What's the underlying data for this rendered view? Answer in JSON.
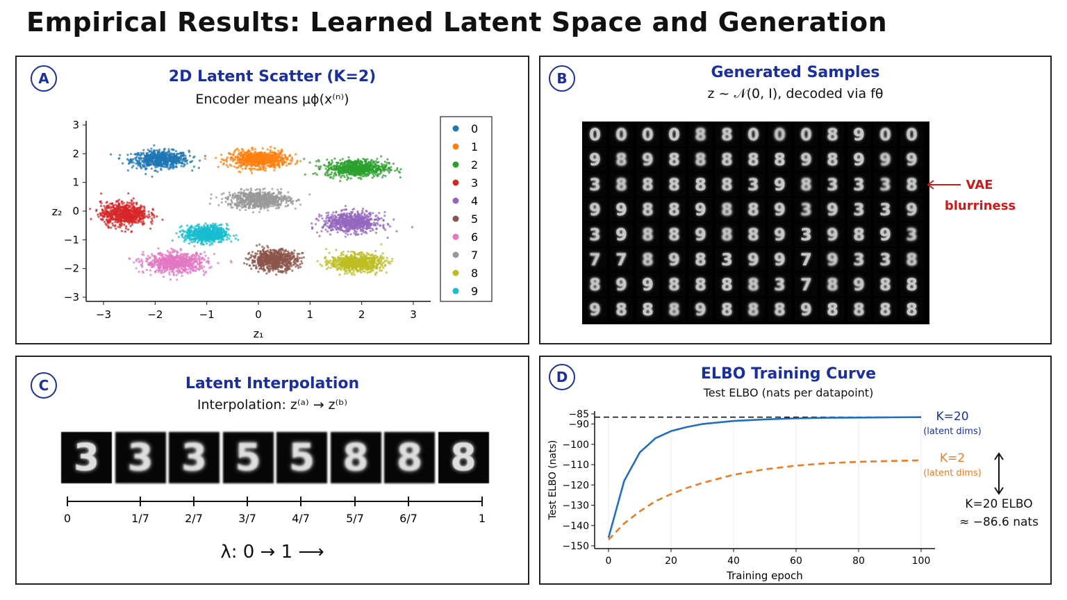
{
  "title": "Empirical Results: Learned Latent Space and Generation",
  "panelA": {
    "badge": "A",
    "title": "2D Latent Scatter (K=2)",
    "subtitle": "Encoder means μϕ(x⁽ⁿ⁾)",
    "xlabel": "z₁",
    "ylabel": "z₂"
  },
  "panelB": {
    "badge": "B",
    "title": "Generated Samples",
    "subtitle": "z ~ 𝒩(0, I), decoded via fθ",
    "annotation_line1": "VAE",
    "annotation_line2": "blurriness",
    "grid": [
      "0000880008900",
      "9898888898999",
      "3888883983338",
      "9988988939339",
      "3988988939893",
      "7789839979338",
      "8998888378988",
      "9888988898888"
    ]
  },
  "panelC": {
    "badge": "C",
    "title": "Latent Interpolation",
    "subtitle": "Interpolation: z⁽ᵃ⁾ → z⁽ᵇ⁾",
    "frames": [
      "3",
      "3",
      "3",
      "5",
      "5",
      "8",
      "8",
      "8"
    ],
    "ticks": [
      "0",
      "1/7",
      "2/7",
      "3/7",
      "4/7",
      "5/7",
      "6/7",
      "1"
    ],
    "lambda_label": "λ: 0 → 1 ⟶"
  },
  "panelD": {
    "badge": "D",
    "title": "ELBO Training Curve",
    "subtitle": "Test ELBO (nats per datapoint)",
    "label_k20": "K=20",
    "label_k20_sub": "(latent dims)",
    "label_k2": "K=2",
    "label_k2_sub": "(latent dims)",
    "note_line1": "K=20 ELBO",
    "note_line2": "≈ −86.6 nats"
  },
  "colors": {
    "accent_blue": "#1a2fa0",
    "red": "#d01818",
    "k20": "#1f6fc0",
    "k2": "#f07a1e"
  },
  "chart_data": [
    {
      "type": "scatter",
      "title": "2D Latent Scatter (K=2)",
      "xlabel": "z₁",
      "ylabel": "z₂",
      "xlim": [
        -3,
        3
      ],
      "ylim": [
        -3,
        3
      ],
      "xticks": [
        "−3",
        "−2",
        "−1",
        "0",
        "1",
        "2",
        "3"
      ],
      "yticks": [
        "3",
        "2",
        "1",
        "0",
        "−1",
        "−2",
        "−3"
      ],
      "legend_position": "right",
      "series": [
        {
          "name": "0",
          "color": "#1f77b4",
          "center": [
            -1.9,
            1.8
          ],
          "spread": [
            0.55,
            0.3
          ]
        },
        {
          "name": "1",
          "color": "#ff7f0e",
          "center": [
            0.0,
            1.8
          ],
          "spread": [
            0.55,
            0.3
          ]
        },
        {
          "name": "2",
          "color": "#2ca02c",
          "center": [
            1.9,
            1.5
          ],
          "spread": [
            0.6,
            0.3
          ]
        },
        {
          "name": "3",
          "color": "#d62728",
          "center": [
            -2.6,
            -0.1
          ],
          "spread": [
            0.45,
            0.4
          ]
        },
        {
          "name": "4",
          "color": "#9467bd",
          "center": [
            1.8,
            -0.4
          ],
          "spread": [
            0.55,
            0.35
          ]
        },
        {
          "name": "5",
          "color": "#8c564b",
          "center": [
            0.3,
            -1.7
          ],
          "spread": [
            0.45,
            0.35
          ]
        },
        {
          "name": "6",
          "color": "#e377c2",
          "center": [
            -1.6,
            -1.8
          ],
          "spread": [
            0.6,
            0.35
          ]
        },
        {
          "name": "7",
          "color": "#999999",
          "center": [
            0.0,
            0.4
          ],
          "spread": [
            0.6,
            0.3
          ]
        },
        {
          "name": "8",
          "color": "#bcbd22",
          "center": [
            1.9,
            -1.8
          ],
          "spread": [
            0.5,
            0.3
          ]
        },
        {
          "name": "9",
          "color": "#17becf",
          "center": [
            -1.0,
            -0.8
          ],
          "spread": [
            0.4,
            0.3
          ]
        }
      ]
    },
    {
      "type": "line",
      "title": "ELBO Training Curve",
      "xlabel": "Training epoch",
      "ylabel": "Test ELBO (nats)",
      "xlim": [
        0,
        100
      ],
      "ylim": [
        -150,
        -85
      ],
      "xticks": [
        "0",
        "20",
        "40",
        "60",
        "80",
        "100"
      ],
      "yticks": [
        "−85",
        "−90",
        "−100",
        "−110",
        "−120",
        "−130",
        "−140",
        "−150"
      ],
      "reference_line": -86.6,
      "x": [
        0,
        5,
        10,
        15,
        20,
        25,
        30,
        40,
        50,
        60,
        70,
        80,
        90,
        100
      ],
      "series": [
        {
          "name": "K=20",
          "color": "#1f6fc0",
          "values": [
            -146,
            -118,
            -104,
            -97,
            -93.5,
            -91.5,
            -90,
            -88.5,
            -87.7,
            -87.2,
            -86.9,
            -86.8,
            -86.7,
            -86.6
          ]
        },
        {
          "name": "K=2",
          "color": "#f07a1e",
          "values": [
            -147,
            -139,
            -133,
            -128,
            -124.5,
            -121.5,
            -119,
            -115,
            -112.3,
            -110.5,
            -109.3,
            -108.6,
            -108.2,
            -107.9
          ]
        }
      ]
    }
  ]
}
